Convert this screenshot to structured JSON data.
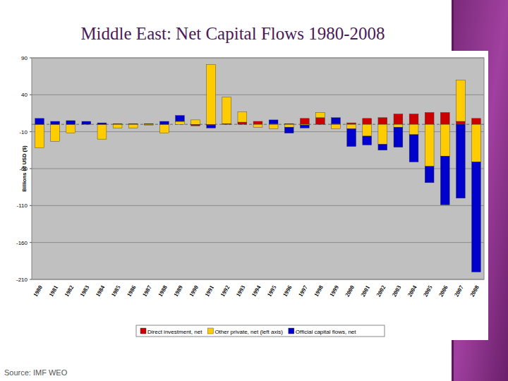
{
  "chart_data": {
    "type": "bar",
    "stacked": true,
    "title": "Middle East: Net Capital Flows 1980-2008",
    "y_label": "Billions of USD ($)",
    "source": "Source: IMF WEO",
    "categories": [
      "1980",
      "1981",
      "1982",
      "1983",
      "1984",
      "1985",
      "1986",
      "1987",
      "1988",
      "1989",
      "1990",
      "1991",
      "1992",
      "1993",
      "1994",
      "1995",
      "1996",
      "1997",
      "1998",
      "1999",
      "2000",
      "2001",
      "2002",
      "2003",
      "2004",
      "2005",
      "2006",
      "2007",
      "2008"
    ],
    "series": [
      {
        "name": "Direct investment, net",
        "color": "#cc0000",
        "values": [
          0,
          0,
          0,
          0,
          0,
          1,
          1,
          1,
          0,
          0,
          -2,
          -1,
          1,
          3,
          4,
          1,
          1,
          8,
          9,
          1,
          2,
          8,
          9,
          14,
          14,
          16,
          16,
          4,
          8
        ]
      },
      {
        "name": "Other private, net (left axis)",
        "color": "#ffcc00",
        "values": [
          -32,
          -23,
          -12,
          0,
          -20,
          -5,
          -5,
          -1,
          -12,
          4,
          6,
          81,
          36,
          14,
          -4,
          -6,
          -4,
          -1,
          7,
          -6,
          -6,
          -16,
          -27,
          -4,
          -14,
          -57,
          -43,
          56,
          -51
        ]
      },
      {
        "name": "Official capital flows, net",
        "color": "#0000cc",
        "values": [
          8,
          4,
          5,
          4,
          2,
          0,
          0,
          0,
          4,
          8,
          0,
          -4,
          0,
          0,
          0,
          5,
          -8,
          -4,
          0,
          8,
          -24,
          -12,
          -8,
          -27,
          -37,
          -22,
          -66,
          -100,
          -149
        ]
      }
    ],
    "ylim": [
      -210,
      90
    ],
    "yticks": [
      90,
      40,
      -10,
      -60,
      -110,
      -160,
      -210
    ],
    "grid": true,
    "legend": "bottom"
  }
}
